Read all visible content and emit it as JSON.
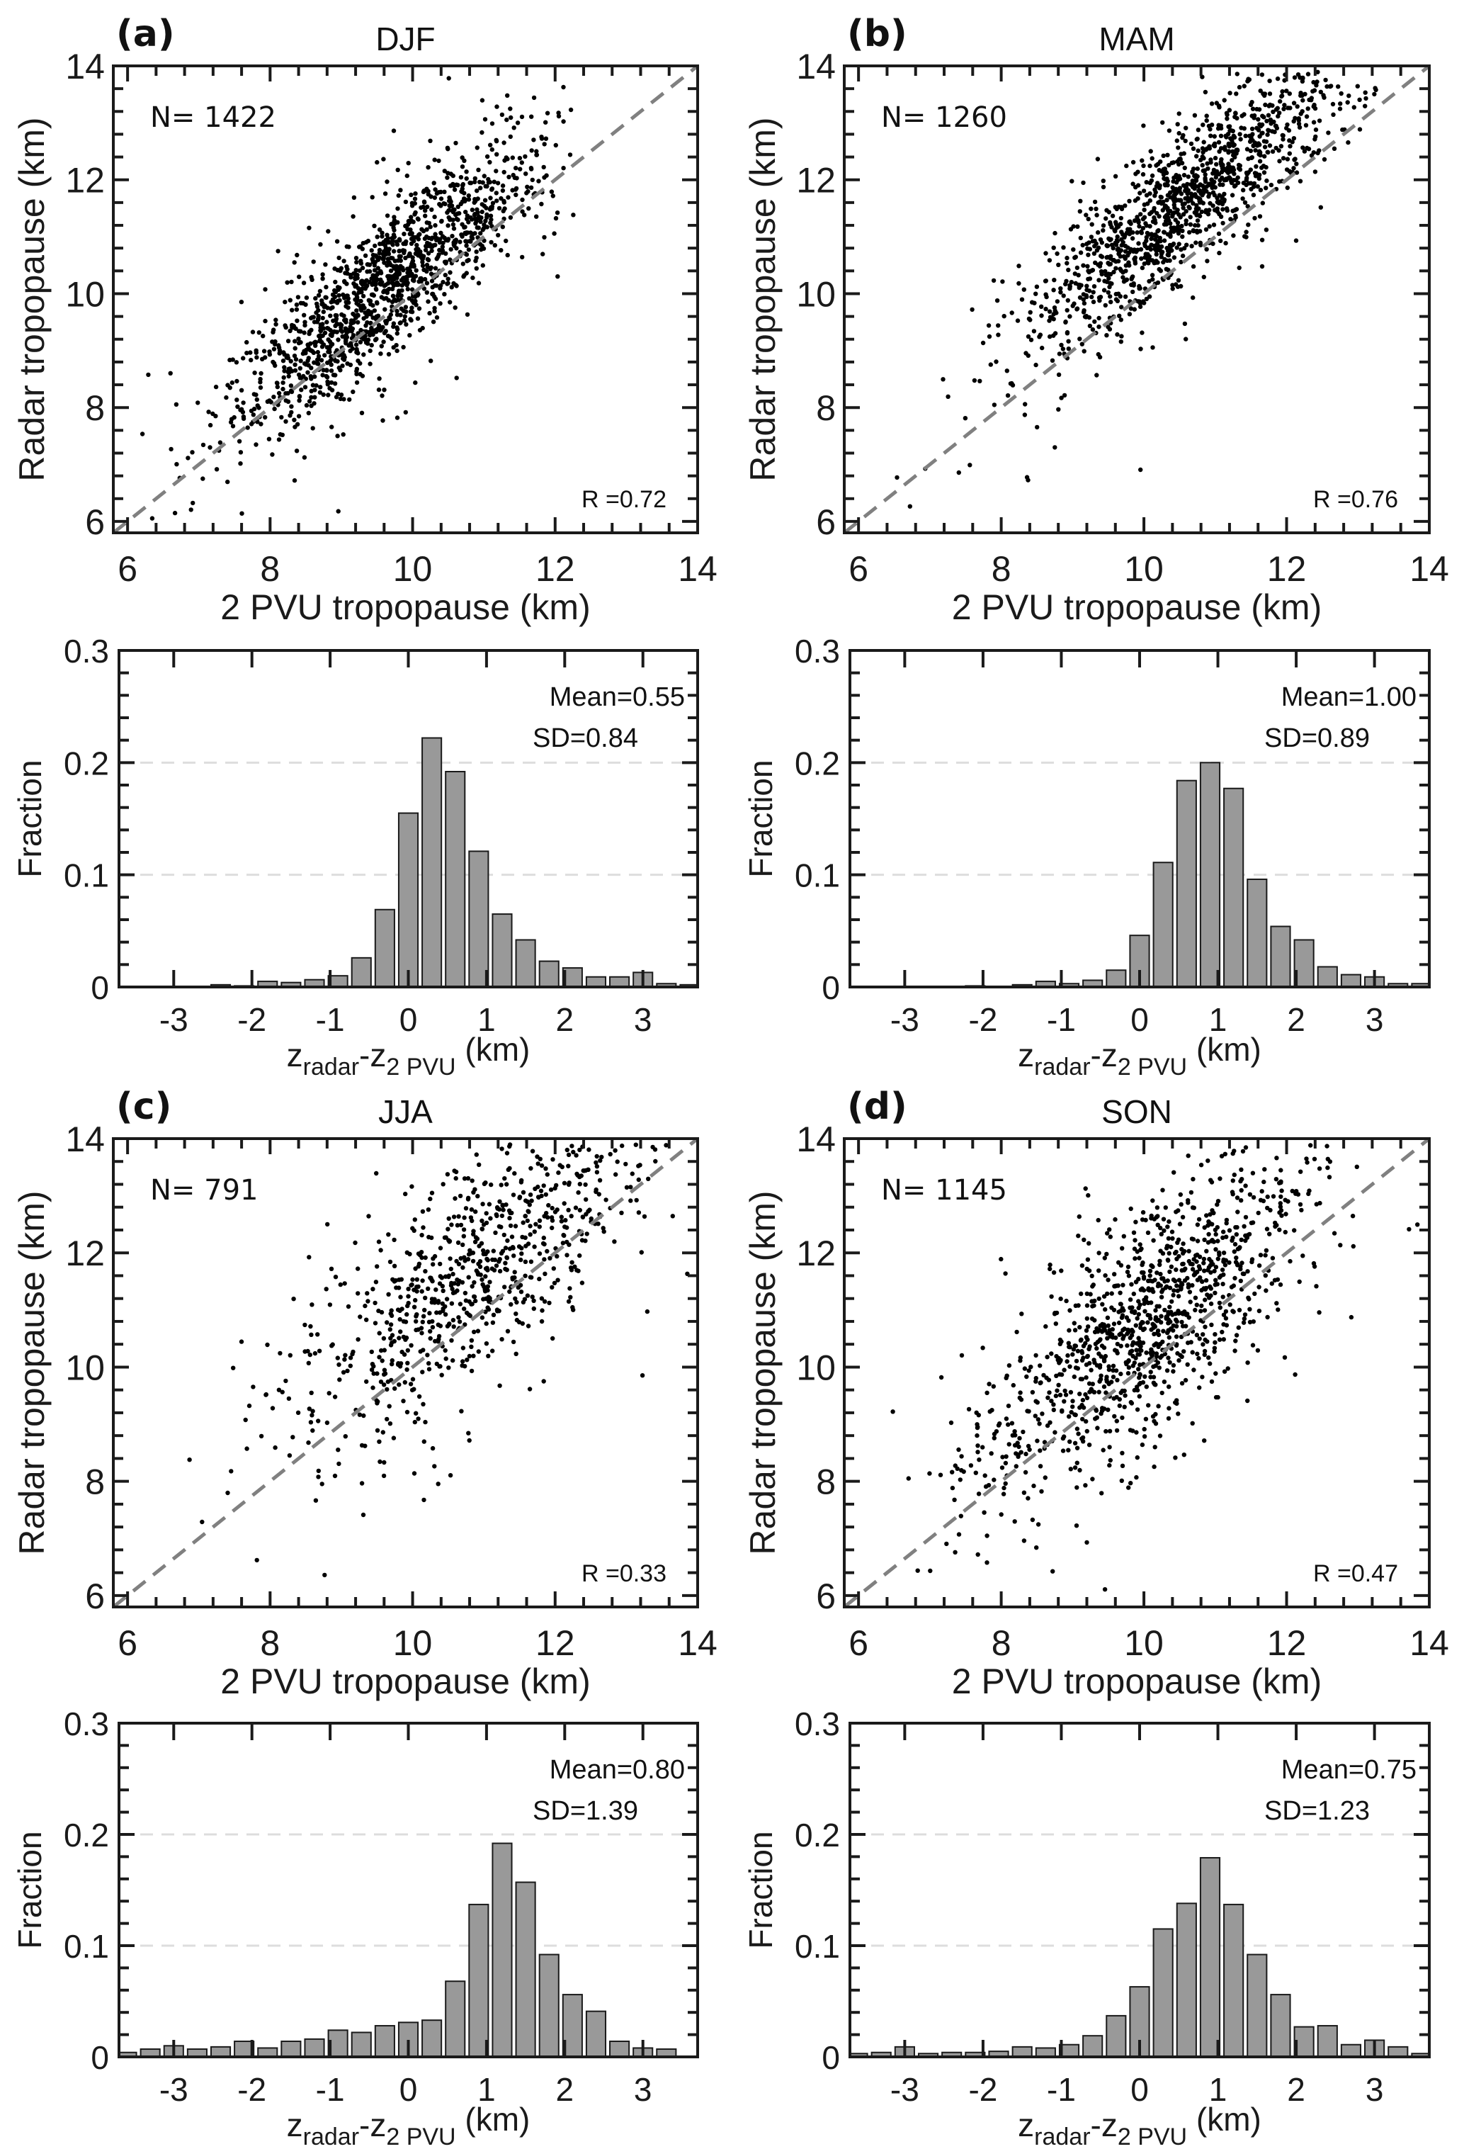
{
  "figure": {
    "colors": {
      "points": "#000000",
      "one_to_one": "#808080",
      "bars": "#999999",
      "grid": "#dddddd",
      "axes": "#1a1a1a"
    }
  },
  "chart_data": [
    {
      "type": "scatter",
      "panel": "(a)",
      "title": "DJF",
      "xlabel": "2 PVU tropopause (km)",
      "ylabel": "Radar tropopause (km)",
      "xlim": [
        5.8,
        14
      ],
      "ylim": [
        5.8,
        14
      ],
      "xticks": [
        6,
        8,
        10,
        12,
        14
      ],
      "yticks": [
        6,
        8,
        10,
        12,
        14
      ],
      "minor_step": 0.4,
      "reference_line": "1:1 dashed",
      "n_label": "N= 1422",
      "n": 1422,
      "r_label": "R =0.72",
      "r": 0.72,
      "cloud": {
        "x_center": 9.6,
        "x_sd": 1.05,
        "y_offset": 0.55,
        "y_noise_sd": 0.62,
        "x_clip": [
          6,
          12.4
        ],
        "seed": 11
      }
    },
    {
      "type": "bar",
      "panel": "(a) histogram",
      "xlabel_main": "z",
      "xlabel_sub1": "radar",
      "xlabel_mid": "-z",
      "xlabel_sub2": "2 PVU",
      "xlabel_unit": "(km)",
      "ylabel": "Fraction",
      "xlim": [
        -3.7,
        3.7
      ],
      "ylim": [
        0,
        0.3
      ],
      "xticks": [
        -3,
        -2,
        -1,
        0,
        1,
        2,
        3
      ],
      "yticks": [
        0,
        0.1,
        0.2,
        0.3
      ],
      "ytick_labels": [
        "0",
        "0.1",
        "0.2",
        "0.3"
      ],
      "grid": [
        0.1,
        0.2
      ],
      "bin_width": 0.3,
      "bin_centers": [
        -3.6,
        -3.3,
        -3.0,
        -2.7,
        -2.4,
        -2.1,
        -1.8,
        -1.5,
        -1.2,
        -0.9,
        -0.6,
        -0.3,
        0.0,
        0.3,
        0.6,
        0.9,
        1.2,
        1.5,
        1.8,
        2.1,
        2.4,
        2.7,
        3.0,
        3.3,
        3.6
      ],
      "values": [
        0,
        0,
        0,
        0,
        0.002,
        0.001,
        0.005,
        0.004,
        0.0065,
        0.01,
        0.026,
        0.069,
        0.155,
        0.222,
        0.192,
        0.121,
        0.065,
        0.042,
        0.023,
        0.017,
        0.009,
        0.009,
        0.013,
        0.003,
        0.002
      ],
      "mean_label": "Mean=0.55",
      "sd_label": "SD=0.84"
    },
    {
      "type": "scatter",
      "panel": "(b)",
      "title": "MAM",
      "xlabel": "2 PVU tropopause (km)",
      "ylabel": "Radar tropopause (km)",
      "xlim": [
        5.8,
        14
      ],
      "ylim": [
        5.8,
        14
      ],
      "xticks": [
        6,
        8,
        10,
        12,
        14
      ],
      "yticks": [
        6,
        8,
        10,
        12,
        14
      ],
      "minor_step": 0.4,
      "reference_line": "1:1 dashed",
      "n_label": "N= 1260",
      "n": 1260,
      "r_label": "R =0.76",
      "r": 0.76,
      "cloud": {
        "x_center": 10.6,
        "x_sd": 1.15,
        "y_offset": 1.0,
        "y_noise_sd": 0.62,
        "x_clip": [
          6,
          13.9
        ],
        "seed": 23
      }
    },
    {
      "type": "bar",
      "panel": "(b) histogram",
      "xlabel_main": "z",
      "xlabel_sub1": "radar",
      "xlabel_mid": "-z",
      "xlabel_sub2": "2 PVU",
      "xlabel_unit": "(km)",
      "ylabel": "Fraction",
      "xlim": [
        -3.7,
        3.7
      ],
      "ylim": [
        0,
        0.3
      ],
      "xticks": [
        -3,
        -2,
        -1,
        0,
        1,
        2,
        3
      ],
      "yticks": [
        0,
        0.1,
        0.2,
        0.3
      ],
      "ytick_labels": [
        "0",
        "0.1",
        "0.2",
        "0.3"
      ],
      "grid": [
        0.1,
        0.2
      ],
      "bin_width": 0.3,
      "bin_centers": [
        -3.6,
        -3.3,
        -3.0,
        -2.7,
        -2.4,
        -2.1,
        -1.8,
        -1.5,
        -1.2,
        -0.9,
        -0.6,
        -0.3,
        0.0,
        0.3,
        0.6,
        0.9,
        1.2,
        1.5,
        1.8,
        2.1,
        2.4,
        2.7,
        3.0,
        3.3,
        3.6
      ],
      "values": [
        0,
        0,
        0,
        0,
        0,
        0.001,
        0,
        0.002,
        0.005,
        0.003,
        0.006,
        0.015,
        0.046,
        0.111,
        0.184,
        0.2,
        0.177,
        0.096,
        0.054,
        0.042,
        0.018,
        0.011,
        0.009,
        0.003,
        0.003
      ],
      "mean_label": "Mean=1.00",
      "sd_label": "SD=0.89"
    },
    {
      "type": "scatter",
      "panel": "(c)",
      "title": "JJA",
      "xlabel": "2 PVU tropopause (km)",
      "ylabel": "Radar tropopause (km)",
      "xlim": [
        5.8,
        14
      ],
      "ylim": [
        5.8,
        14
      ],
      "xticks": [
        6,
        8,
        10,
        12,
        14
      ],
      "yticks": [
        6,
        8,
        10,
        12,
        14
      ],
      "minor_step": 0.4,
      "reference_line": "1:1 dashed",
      "n_label": "N= 791",
      "n": 791,
      "r_label": "R =0.33",
      "r": 0.33,
      "cloud": {
        "x_center": 10.9,
        "x_sd": 1.2,
        "y_offset": 0.8,
        "y_noise_sd": 1.0,
        "x_clip": [
          6.8,
          14
        ],
        "seed": 37
      }
    },
    {
      "type": "bar",
      "panel": "(c) histogram",
      "xlabel_main": "z",
      "xlabel_sub1": "radar",
      "xlabel_mid": "-z",
      "xlabel_sub2": "2 PVU",
      "xlabel_unit": "(km)",
      "ylabel": "Fraction",
      "xlim": [
        -3.7,
        3.7
      ],
      "ylim": [
        0,
        0.3
      ],
      "xticks": [
        -3,
        -2,
        -1,
        0,
        1,
        2,
        3
      ],
      "yticks": [
        0,
        0.1,
        0.2,
        0.3
      ],
      "ytick_labels": [
        "0",
        "0.1",
        "0.2",
        "0.3"
      ],
      "grid": [
        0.1,
        0.2
      ],
      "bin_width": 0.3,
      "bin_centers": [
        -3.6,
        -3.3,
        -3.0,
        -2.7,
        -2.4,
        -2.1,
        -1.8,
        -1.5,
        -1.2,
        -0.9,
        -0.6,
        -0.3,
        0.0,
        0.3,
        0.6,
        0.9,
        1.2,
        1.5,
        1.8,
        2.1,
        2.4,
        2.7,
        3.0,
        3.3,
        3.6
      ],
      "values": [
        0.004,
        0.007,
        0.01,
        0.007,
        0.009,
        0.014,
        0.008,
        0.014,
        0.016,
        0.024,
        0.022,
        0.028,
        0.031,
        0.033,
        0.068,
        0.137,
        0.192,
        0.157,
        0.092,
        0.056,
        0.041,
        0.014,
        0.008,
        0.007,
        0
      ],
      "mean_label": "Mean=0.80",
      "sd_label": "SD=1.39"
    },
    {
      "type": "scatter",
      "panel": "(d)",
      "title": "SON",
      "xlabel": "2 PVU tropopause (km)",
      "ylabel": "Radar tropopause (km)",
      "xlim": [
        5.8,
        14
      ],
      "ylim": [
        5.8,
        14
      ],
      "xticks": [
        6,
        8,
        10,
        12,
        14
      ],
      "yticks": [
        6,
        8,
        10,
        12,
        14
      ],
      "minor_step": 0.4,
      "reference_line": "1:1 dashed",
      "n_label": "N= 1145",
      "n": 1145,
      "r_label": "R =0.47",
      "r": 0.47,
      "cloud": {
        "x_center": 10.1,
        "x_sd": 1.15,
        "y_offset": 0.75,
        "y_noise_sd": 0.9,
        "x_clip": [
          6.1,
          14
        ],
        "seed": 53
      }
    },
    {
      "type": "bar",
      "panel": "(d) histogram",
      "xlabel_main": "z",
      "xlabel_sub1": "radar",
      "xlabel_mid": "-z",
      "xlabel_sub2": "2 PVU",
      "xlabel_unit": "(km)",
      "ylabel": "Fraction",
      "xlim": [
        -3.7,
        3.7
      ],
      "ylim": [
        0,
        0.3
      ],
      "xticks": [
        -3,
        -2,
        -1,
        0,
        1,
        2,
        3
      ],
      "yticks": [
        0,
        0.1,
        0.2,
        0.3
      ],
      "ytick_labels": [
        "0",
        "0.1",
        "0.2",
        "0.3"
      ],
      "grid": [
        0.1,
        0.2
      ],
      "bin_width": 0.3,
      "bin_centers": [
        -3.6,
        -3.3,
        -3.0,
        -2.7,
        -2.4,
        -2.1,
        -1.8,
        -1.5,
        -1.2,
        -0.9,
        -0.6,
        -0.3,
        0.0,
        0.3,
        0.6,
        0.9,
        1.2,
        1.5,
        1.8,
        2.1,
        2.4,
        2.7,
        3.0,
        3.3,
        3.6
      ],
      "values": [
        0.003,
        0.004,
        0.009,
        0.003,
        0.004,
        0.004,
        0.005,
        0.009,
        0.008,
        0.011,
        0.019,
        0.037,
        0.063,
        0.115,
        0.138,
        0.179,
        0.137,
        0.092,
        0.056,
        0.027,
        0.028,
        0.011,
        0.015,
        0.009,
        0.003
      ],
      "mean_label": "Mean=0.75",
      "sd_label": "SD=1.23"
    }
  ]
}
